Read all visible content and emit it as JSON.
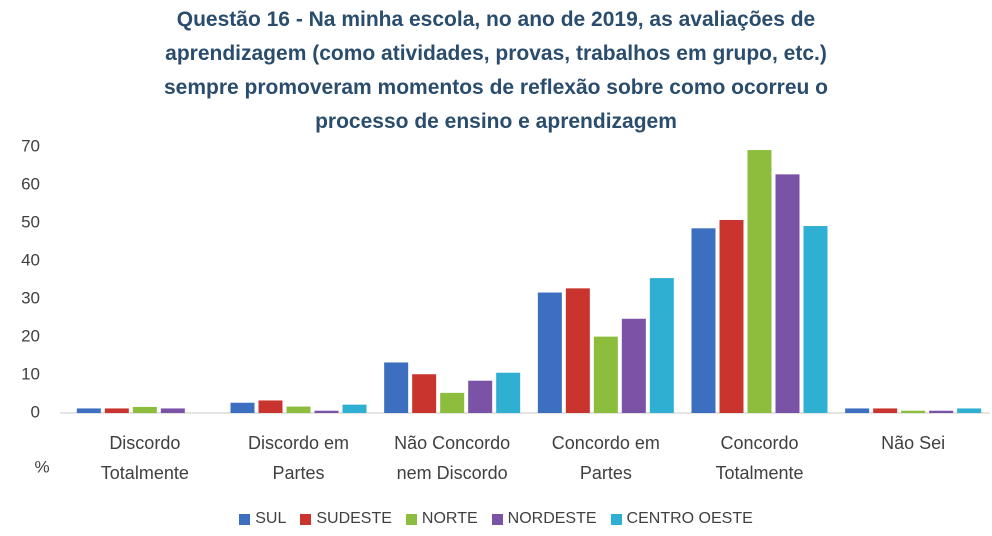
{
  "chart_data": {
    "type": "bar",
    "title": [
      "Questão 16 - Na minha escola, no ano de 2019,  as avaliações de",
      "aprendizagem (como atividades, provas, trabalhos em grupo, etc.)",
      "sempre promoveram momentos de reflexão  sobre como ocorreu o",
      "processo de ensino e aprendizagem"
    ],
    "y_label": "%",
    "categories": [
      "Discordo Totalmente",
      "Discordo em Partes",
      "Não Concordo nem Discordo",
      "Concordo em Partes",
      "Concordo Totalmente",
      "Não Sei"
    ],
    "series": [
      {
        "name": "SUL",
        "color": "#3d6fc0",
        "values": [
          1.2,
          2.7,
          13.3,
          31.7,
          48.6,
          1.2
        ]
      },
      {
        "name": "SUDESTE",
        "color": "#c9342f",
        "values": [
          1.2,
          3.3,
          10.2,
          32.8,
          50.8,
          1.2
        ]
      },
      {
        "name": "NORTE",
        "color": "#8dbd3c",
        "values": [
          1.6,
          1.7,
          5.3,
          20.1,
          69.2,
          0.6
        ]
      },
      {
        "name": "NORDESTE",
        "color": "#7a53a7",
        "values": [
          1.2,
          0.6,
          8.5,
          24.8,
          62.8,
          0.6
        ]
      },
      {
        "name": "CENTRO OESTE",
        "color": "#2fb0d2",
        "values": [
          0,
          2.2,
          10.6,
          35.5,
          49.2,
          1.2
        ]
      }
    ],
    "ylim": [
      0,
      70
    ],
    "yticks": [
      0,
      10,
      20,
      30,
      40,
      50,
      60,
      70
    ],
    "grid": false,
    "legend": "bottom"
  }
}
